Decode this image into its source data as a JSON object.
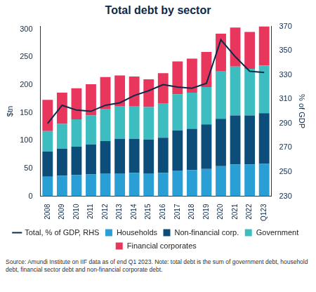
{
  "chart_data": {
    "type": "bar",
    "title": "Total debt by sector",
    "source": "Source: Amundi Institute on IIF data as of end Q1 2023. Note: total debt is the sum of government debt, household debt, financial sector debt and non-financial corporate debt.",
    "y_label": "$tn",
    "y2_label": "% of GDP",
    "stacked": true,
    "grid": false,
    "legend": "bottom",
    "categories": [
      "2008",
      "2009",
      "2010",
      "2011",
      "2012",
      "2013",
      "2014",
      "2015",
      "2016",
      "2017",
      "2018",
      "2019",
      "2020",
      "2021",
      "2022",
      "Q123"
    ],
    "series": [
      {
        "name": "Households",
        "color": "#2a9fd6",
        "values": [
          35,
          37,
          38,
          39,
          41,
          41,
          42,
          41,
          42,
          46,
          47,
          49,
          54,
          57,
          57,
          58
        ]
      },
      {
        "name": "Non-financial corp.",
        "color": "#0d4d7a",
        "values": [
          45,
          48,
          51,
          54,
          58,
          62,
          61,
          61,
          63,
          72,
          74,
          80,
          85,
          88,
          88,
          91
        ]
      },
      {
        "name": "Government",
        "color": "#3dbdbf",
        "values": [
          37,
          45,
          49,
          52,
          57,
          59,
          58,
          58,
          62,
          65,
          65,
          67,
          85,
          88,
          84,
          86
        ]
      },
      {
        "name": "Financial corporates",
        "color": "#e8365d",
        "values": [
          56,
          56,
          56,
          56,
          58,
          55,
          54,
          50,
          54,
          59,
          61,
          63,
          68,
          70,
          66,
          70
        ]
      },
      {
        "name": "Total, % of GDP, RHS",
        "color": "#0d2a4a",
        "type": "line",
        "axis": "y2",
        "values": [
          290,
          305,
          301,
          300,
          305,
          307,
          313,
          317,
          322,
          320,
          319,
          323,
          359,
          345,
          333,
          332
        ]
      }
    ],
    "ylim": [
      0,
      305
    ],
    "yticks": [
      0,
      50,
      100,
      150,
      200,
      250,
      300
    ],
    "y2lim": [
      230,
      370
    ],
    "y2ticks": [
      230,
      250,
      270,
      290,
      310,
      330,
      350,
      370
    ]
  }
}
